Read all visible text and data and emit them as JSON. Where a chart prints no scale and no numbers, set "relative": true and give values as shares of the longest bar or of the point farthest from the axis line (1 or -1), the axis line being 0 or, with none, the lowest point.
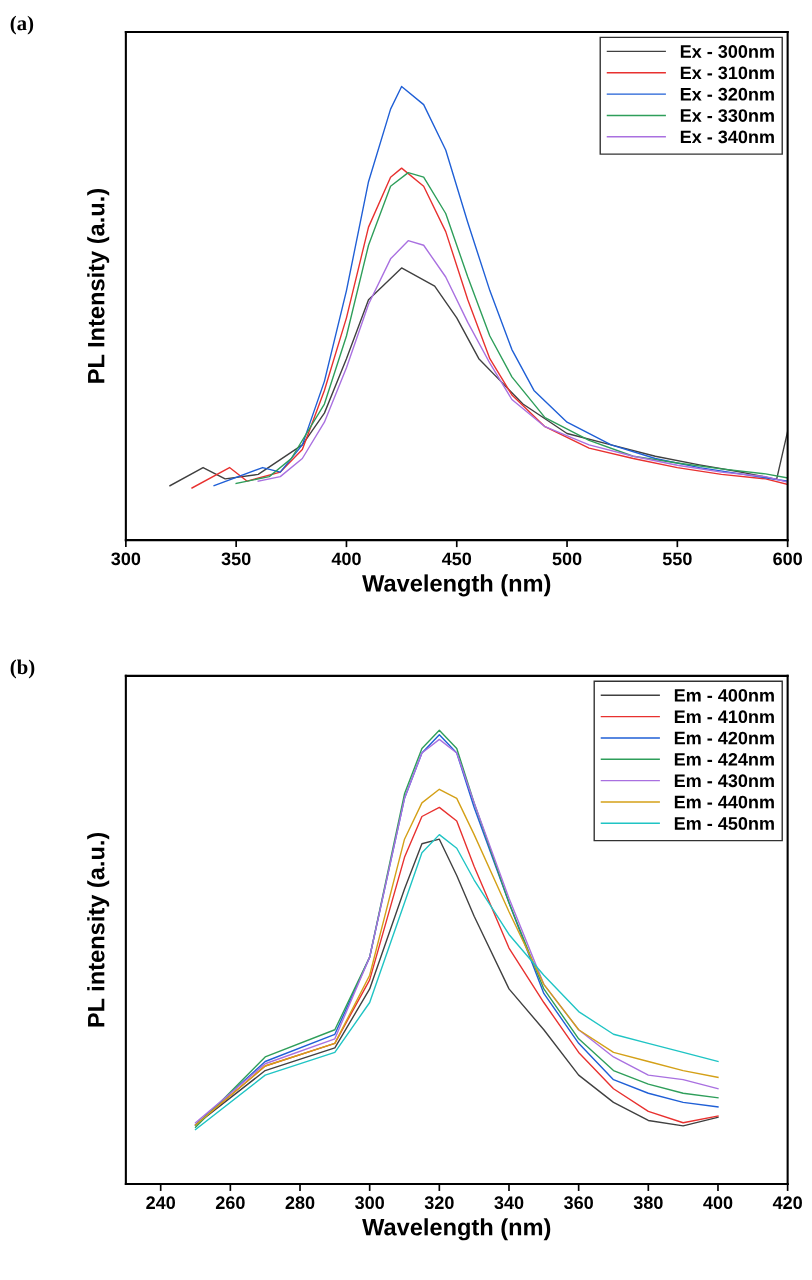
{
  "chart_data": [
    {
      "type": "line",
      "title": "(a)",
      "xlabel": "Wavelength (nm)",
      "ylabel": "PL Intensity (a.u.)",
      "relative": true,
      "xlim": [
        300,
        600
      ],
      "xticks": [
        300,
        350,
        400,
        450,
        500,
        550,
        600
      ],
      "legend": "top right",
      "grid": false,
      "series": [
        {
          "name": "Ex - 300nm",
          "color": "#404040",
          "x": [
            320,
            335,
            345,
            360,
            380,
            390,
            400,
            410,
            425,
            440,
            450,
            460,
            470,
            480,
            500,
            520,
            540,
            560,
            580,
            595,
            600
          ],
          "values": [
            0.12,
            0.16,
            0.135,
            0.145,
            0.21,
            0.28,
            0.4,
            0.53,
            0.6,
            0.56,
            0.49,
            0.4,
            0.35,
            0.3,
            0.235,
            0.21,
            0.185,
            0.166,
            0.149,
            0.134,
            0.24
          ]
        },
        {
          "name": "Ex - 310nm",
          "color": "#e8312f",
          "x": [
            330,
            347,
            355,
            370,
            380,
            390,
            400,
            410,
            420,
            425,
            435,
            445,
            455,
            465,
            475,
            490,
            510,
            530,
            550,
            570,
            590,
            600
          ],
          "values": [
            0.115,
            0.16,
            0.13,
            0.15,
            0.2,
            0.33,
            0.49,
            0.69,
            0.8,
            0.82,
            0.78,
            0.68,
            0.53,
            0.4,
            0.32,
            0.25,
            0.203,
            0.18,
            0.16,
            0.145,
            0.135,
            0.123
          ]
        },
        {
          "name": "Ex - 320nm",
          "color": "#1f5fd6",
          "x": [
            340,
            362,
            370,
            380,
            390,
            400,
            410,
            420,
            425,
            435,
            445,
            455,
            465,
            475,
            485,
            500,
            520,
            540,
            560,
            580,
            600
          ],
          "values": [
            0.12,
            0.16,
            0.15,
            0.21,
            0.35,
            0.55,
            0.79,
            0.95,
            1,
            0.96,
            0.86,
            0.7,
            0.55,
            0.42,
            0.33,
            0.26,
            0.21,
            0.18,
            0.16,
            0.145,
            0.13
          ]
        },
        {
          "name": "Ex - 330nm",
          "color": "#2e9e5a",
          "x": [
            350,
            365,
            375,
            390,
            400,
            410,
            420,
            428,
            435,
            445,
            455,
            465,
            475,
            490,
            510,
            530,
            550,
            570,
            590,
            600
          ],
          "values": [
            0.125,
            0.14,
            0.18,
            0.3,
            0.45,
            0.65,
            0.78,
            0.81,
            0.8,
            0.72,
            0.58,
            0.45,
            0.36,
            0.27,
            0.22,
            0.185,
            0.17,
            0.157,
            0.146,
            0.137
          ]
        },
        {
          "name": "Ex - 340nm",
          "color": "#a970e0",
          "x": [
            360,
            370,
            380,
            390,
            400,
            410,
            420,
            428,
            435,
            445,
            455,
            465,
            475,
            490,
            510,
            530,
            550,
            570,
            590,
            600
          ],
          "values": [
            0.13,
            0.14,
            0.18,
            0.26,
            0.38,
            0.52,
            0.62,
            0.66,
            0.65,
            0.58,
            0.48,
            0.39,
            0.31,
            0.25,
            0.21,
            0.185,
            0.165,
            0.15,
            0.14,
            0.128
          ]
        }
      ]
    },
    {
      "type": "line",
      "title": "(b)",
      "xlabel": "Wavelength (nm)",
      "ylabel": "PL intensity (a.u.)",
      "relative": true,
      "xlim": [
        230,
        420
      ],
      "xticks": [
        240,
        260,
        280,
        300,
        320,
        340,
        360,
        380,
        400,
        420
      ],
      "legend": "top right",
      "grid": false,
      "x": [
        250,
        270,
        290,
        300,
        310,
        315,
        320,
        325,
        330,
        340,
        350,
        360,
        370,
        380,
        390,
        400
      ],
      "series": [
        {
          "name": "Em - 400nm",
          "color": "#404040",
          "values": [
            0.13,
            0.25,
            0.3,
            0.43,
            0.65,
            0.75,
            0.76,
            0.68,
            0.59,
            0.43,
            0.34,
            0.24,
            0.18,
            0.14,
            0.128,
            0.147
          ]
        },
        {
          "name": "Em - 410nm",
          "color": "#e8312f",
          "values": [
            0.13,
            0.26,
            0.31,
            0.45,
            0.72,
            0.81,
            0.83,
            0.8,
            0.7,
            0.52,
            0.4,
            0.29,
            0.21,
            0.16,
            0.135,
            0.15
          ]
        },
        {
          "name": "Em - 420nm",
          "color": "#1f5fd6",
          "values": [
            0.13,
            0.27,
            0.33,
            0.5,
            0.85,
            0.95,
            0.99,
            0.95,
            0.83,
            0.62,
            0.42,
            0.31,
            0.23,
            0.2,
            0.18,
            0.17
          ]
        },
        {
          "name": "Em - 424nm",
          "color": "#2e9e5a",
          "values": [
            0.125,
            0.28,
            0.34,
            0.5,
            0.86,
            0.96,
            1,
            0.96,
            0.84,
            0.62,
            0.43,
            0.32,
            0.25,
            0.22,
            0.2,
            0.19
          ]
        },
        {
          "name": "Em - 430nm",
          "color": "#a970e0",
          "values": [
            0.135,
            0.265,
            0.32,
            0.5,
            0.85,
            0.95,
            0.98,
            0.95,
            0.84,
            0.63,
            0.44,
            0.34,
            0.28,
            0.24,
            0.23,
            0.21
          ]
        },
        {
          "name": "Em - 440nm",
          "color": "#d4a017",
          "values": [
            0.13,
            0.26,
            0.31,
            0.46,
            0.76,
            0.84,
            0.87,
            0.85,
            0.77,
            0.6,
            0.44,
            0.34,
            0.29,
            0.27,
            0.25,
            0.235
          ]
        },
        {
          "name": "Em - 450nm",
          "color": "#1fc4c4",
          "values": [
            0.12,
            0.24,
            0.29,
            0.4,
            0.62,
            0.73,
            0.77,
            0.74,
            0.67,
            0.55,
            0.46,
            0.38,
            0.33,
            0.31,
            0.29,
            0.27
          ]
        }
      ]
    }
  ]
}
